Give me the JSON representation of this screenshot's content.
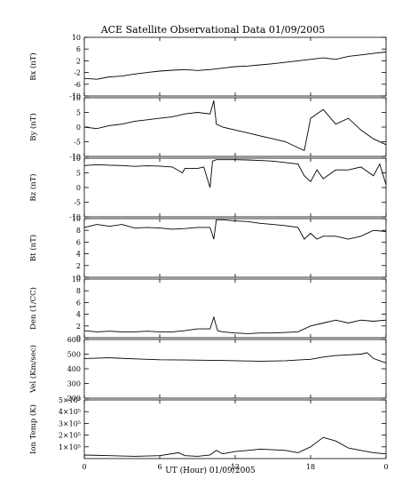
{
  "chart_data": {
    "type": "line",
    "title": "ACE Satellite Observational Data   01/09/2005",
    "xlabel": "UT (Hour)   01/09/2005",
    "x_ticks": [
      "0",
      "6",
      "12",
      "18",
      "0"
    ],
    "xlim": [
      0,
      24
    ],
    "grid": false,
    "panels": [
      {
        "ylabel": "Bx (nT)",
        "ylim": [
          -10,
          10
        ],
        "yticks": [
          10,
          6,
          2,
          -2,
          -6,
          -10
        ],
        "ytick_labels": [
          "10",
          "6",
          "2",
          "-2",
          "-6",
          "-10"
        ],
        "series": [
          {
            "x": [
              0,
              1,
              2,
              3,
              4,
              5,
              6,
              7,
              8,
              9,
              10,
              11,
              12,
              13,
              14,
              15,
              16,
              17,
              18,
              19,
              20,
              21,
              22,
              23,
              24
            ],
            "values": [
              -4,
              -4.3,
              -3.5,
              -3.2,
              -2.5,
              -2,
              -1.5,
              -1.2,
              -1,
              -1.3,
              -1,
              -0.5,
              0,
              0.2,
              0.6,
              1,
              1.5,
              2,
              2.5,
              3,
              2.5,
              3.5,
              4,
              4.5,
              5
            ]
          }
        ]
      },
      {
        "ylabel": "By (nT)",
        "ylim": [
          -10,
          10
        ],
        "yticks": [
          10,
          5,
          0,
          -5,
          -10
        ],
        "ytick_labels": [
          "10",
          "5",
          "0",
          "-5",
          "-10"
        ],
        "series": [
          {
            "x": [
              0,
              1,
              2,
              3,
              4,
              5,
              6,
              7,
              8,
              9,
              10,
              10.3,
              10.5,
              11,
              12,
              13,
              14,
              15,
              16,
              17,
              17.5,
              18,
              19,
              20,
              21,
              22,
              23,
              24
            ],
            "values": [
              0,
              -0.5,
              0.5,
              1,
              2,
              2.5,
              3,
              3.5,
              4.5,
              5,
              4.5,
              9,
              1,
              0,
              -1,
              -2,
              -3,
              -4,
              -5,
              -7,
              -8,
              3,
              6,
              1,
              3,
              -1,
              -4,
              -6
            ]
          }
        ]
      },
      {
        "ylabel": "Bz (nT)",
        "ylim": [
          -10,
          10
        ],
        "yticks": [
          10,
          5,
          0,
          -5,
          -10
        ],
        "ytick_labels": [
          "10",
          "5",
          "0",
          "-5",
          "-10"
        ],
        "series": [
          {
            "x": [
              0,
              1,
              2,
              3,
              4,
              5,
              6,
              7,
              7.8,
              8,
              9,
              9.5,
              10,
              10.2,
              10.5,
              11,
              12,
              13,
              14,
              15,
              16,
              17,
              17.5,
              18,
              18.5,
              19,
              20,
              21,
              22,
              23,
              23.5,
              24
            ],
            "values": [
              7.5,
              7.8,
              7.6,
              7.5,
              7.2,
              7.4,
              7.3,
              7,
              5,
              6.5,
              6.5,
              7,
              0,
              9,
              9.5,
              9.5,
              9.5,
              9.4,
              9.2,
              9,
              8.5,
              8,
              4,
              2,
              6,
              3,
              6,
              6,
              7,
              4,
              8,
              1
            ]
          }
        ]
      },
      {
        "ylabel": "Bt (nT)",
        "ylim": [
          0,
          10
        ],
        "yticks": [
          10,
          8,
          6,
          4,
          2,
          0
        ],
        "ytick_labels": [
          "10",
          "8",
          "6",
          "4",
          "2",
          "0"
        ],
        "series": [
          {
            "x": [
              0,
              1,
              2,
              3,
              4,
              5,
              6,
              7,
              8,
              9,
              10,
              10.3,
              10.5,
              11,
              12,
              13,
              14,
              15,
              16,
              17,
              17.5,
              18,
              18.5,
              19,
              20,
              21,
              22,
              23,
              24
            ],
            "values": [
              8.5,
              9,
              8.7,
              9,
              8.4,
              8.5,
              8.4,
              8.2,
              8.3,
              8.5,
              8.5,
              6.5,
              9.8,
              9.8,
              9.6,
              9.5,
              9.2,
              9,
              8.8,
              8.5,
              6.5,
              7.5,
              6.5,
              7,
              7,
              6.5,
              7,
              8,
              7.8
            ]
          }
        ]
      },
      {
        "ylabel": "Den (1/CC)",
        "ylim": [
          0,
          10
        ],
        "yticks": [
          10,
          8,
          6,
          4,
          2,
          0
        ],
        "ytick_labels": [
          "10",
          "8",
          "6",
          "4",
          "2",
          "0"
        ],
        "series": [
          {
            "x": [
              0,
              1,
              2,
              3,
              4,
              5,
              6,
              7,
              8,
              9,
              10,
              10.3,
              10.6,
              11,
              12,
              13,
              14,
              15,
              16,
              17,
              18,
              19,
              20,
              21,
              22,
              23,
              24
            ],
            "values": [
              1.2,
              1,
              1.1,
              1,
              1,
              1.1,
              1,
              1,
              1.2,
              1.5,
              1.5,
              3.5,
              1.2,
              1,
              0.8,
              0.7,
              0.8,
              0.8,
              0.9,
              1,
              2,
              2.5,
              3,
              2.5,
              3,
              2.8,
              3
            ]
          }
        ]
      },
      {
        "ylabel": "Vel (Km/sec)",
        "ylim": [
          200,
          600
        ],
        "yticks": [
          600,
          500,
          400,
          300,
          200
        ],
        "ytick_labels": [
          "600",
          "500",
          "400",
          "300",
          "200"
        ],
        "series": [
          {
            "x": [
              0,
              2,
              4,
              6,
              8,
              10,
              12,
              14,
              16,
              17,
              18,
              19,
              20,
              21,
              22,
              22.5,
              23,
              24
            ],
            "values": [
              470,
              475,
              468,
              462,
              460,
              458,
              455,
              452,
              455,
              460,
              465,
              480,
              490,
              495,
              500,
              510,
              470,
              440
            ]
          }
        ]
      },
      {
        "ylabel": "Ion Temp (K)",
        "ylim": [
          0,
          500000
        ],
        "yticks": [
          500000,
          400000,
          300000,
          200000,
          100000
        ],
        "ytick_labels": [
          "5×10⁵",
          "4×10⁵",
          "3×10⁵",
          "2×10⁵",
          "1×10⁵"
        ],
        "series": [
          {
            "x": [
              0,
              2,
              4,
              6,
              7.5,
              8,
              9,
              10,
              10.5,
              11,
              12,
              13,
              14,
              15,
              16,
              17,
              18,
              19,
              20,
              21,
              22,
              23,
              24
            ],
            "values": [
              30000,
              25000,
              20000,
              25000,
              50000,
              25000,
              20000,
              30000,
              70000,
              40000,
              60000,
              70000,
              80000,
              75000,
              70000,
              50000,
              100000,
              180000,
              150000,
              90000,
              70000,
              50000,
              40000
            ]
          }
        ]
      }
    ]
  }
}
